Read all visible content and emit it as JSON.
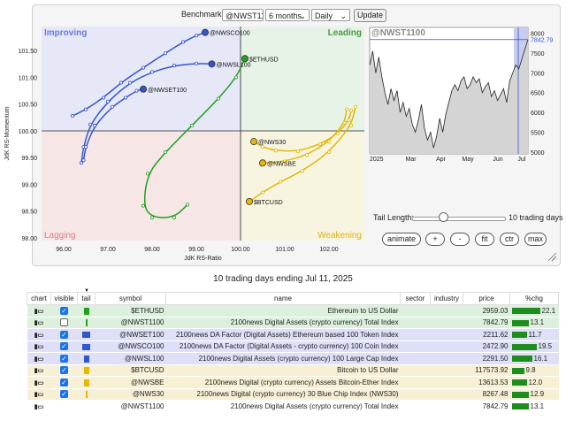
{
  "controls": {
    "benchmark_label": "Benchmark:",
    "benchmark_value": "@NWST1100",
    "period_value": "6 months",
    "interval_value": "Daily",
    "update_label": "Update"
  },
  "rrg": {
    "quadrants": {
      "improving": "Improving",
      "leading": "Leading",
      "lagging": "Lagging",
      "weakening": "Weakening"
    },
    "quadrant_colors": {
      "improving": "#e6e8f7",
      "leading": "#e6f3e6",
      "lagging": "#f7e6e6",
      "weakening": "#f7f4e0"
    },
    "quadrant_text_colors": {
      "improving": "#6b78d8",
      "leading": "#4a9a4a",
      "lagging": "#d88080",
      "weakening": "#e0b020"
    },
    "xlabel": "JdK RS-Ratio",
    "ylabel": "JdK RS-Momentum",
    "x_ticks": [
      "96.00",
      "97.00",
      "98.00",
      "99.00",
      "100.00",
      "101.00",
      "102.00"
    ],
    "y_ticks": [
      "101.50",
      "101.00",
      "100.50",
      "100.00",
      "99.50",
      "99.00",
      "98.50",
      "98.00"
    ],
    "xlim": [
      95.5,
      102.8
    ],
    "ylim": [
      97.95,
      101.95
    ],
    "series": [
      {
        "name": "@NWSCO100",
        "color": "#3355cc",
        "points": [
          [
            96.2,
            100.28
          ],
          [
            96.5,
            100.4
          ],
          [
            96.9,
            100.62
          ],
          [
            97.3,
            100.9
          ],
          [
            97.8,
            101.18
          ],
          [
            98.3,
            101.45
          ],
          [
            98.7,
            101.66
          ],
          [
            99.0,
            101.78
          ],
          [
            99.2,
            101.84
          ]
        ]
      },
      {
        "name": "@NWSL100",
        "color": "#3355cc",
        "points": [
          [
            96.4,
            99.4
          ],
          [
            96.45,
            99.7
          ],
          [
            96.6,
            100.12
          ],
          [
            97.0,
            100.55
          ],
          [
            97.5,
            100.9
          ],
          [
            98.0,
            101.1
          ],
          [
            98.5,
            101.22
          ],
          [
            99.0,
            101.26
          ],
          [
            99.35,
            101.25
          ]
        ]
      },
      {
        "name": "@NWSET100",
        "color": "#3355cc",
        "points": [
          [
            96.45,
            99.45
          ],
          [
            96.5,
            99.7
          ],
          [
            96.7,
            100.1
          ],
          [
            97.1,
            100.45
          ],
          [
            97.4,
            100.62
          ],
          [
            97.65,
            100.75
          ],
          [
            97.8,
            100.78
          ]
        ]
      },
      {
        "name": "$ETHUSD",
        "color": "#22a022",
        "points": [
          [
            98.8,
            98.62
          ],
          [
            98.5,
            98.38
          ],
          [
            98.0,
            98.38
          ],
          [
            97.8,
            98.6
          ],
          [
            97.9,
            99.2
          ],
          [
            98.3,
            99.6
          ],
          [
            98.9,
            100.1
          ],
          [
            99.5,
            100.6
          ],
          [
            99.9,
            101.0
          ],
          [
            100.1,
            101.35
          ]
        ]
      },
      {
        "name": "@NWS30",
        "color": "#e6b800",
        "points": [
          [
            102.5,
            100.38
          ],
          [
            102.45,
            100.2
          ],
          [
            102.2,
            99.95
          ],
          [
            101.8,
            99.75
          ],
          [
            101.3,
            99.62
          ],
          [
            100.8,
            99.63
          ],
          [
            100.5,
            99.7
          ],
          [
            100.3,
            99.8
          ]
        ]
      },
      {
        "name": "@NWSBE",
        "color": "#e6b800",
        "points": [
          [
            102.4,
            100.4
          ],
          [
            102.35,
            100.15
          ],
          [
            102.0,
            99.8
          ],
          [
            101.5,
            99.55
          ],
          [
            101.0,
            99.43
          ],
          [
            100.5,
            99.4
          ]
        ]
      },
      {
        "name": "$BTCUSD",
        "color": "#e6b800",
        "points": [
          [
            102.6,
            100.45
          ],
          [
            102.5,
            100.1
          ],
          [
            102.0,
            99.6
          ],
          [
            101.4,
            99.25
          ],
          [
            100.9,
            99.05
          ],
          [
            100.5,
            98.85
          ],
          [
            100.2,
            98.68
          ]
        ]
      }
    ],
    "labels": [
      "@NWSCO100",
      "@NWSL100",
      "@NWSET100",
      "$ETHUSD",
      "@NWS30",
      "@NWSBE",
      "$BTCUSD"
    ]
  },
  "price_chart": {
    "title": "@NWST1100",
    "current_value": "7842.79",
    "y_ticks": [
      "8000",
      "7500",
      "7000",
      "6500",
      "6000",
      "5500",
      "5000"
    ],
    "x_ticks": [
      "2025",
      "Mar",
      "Apr",
      "May",
      "Jun",
      "Jul"
    ],
    "ylim": [
      4950,
      8150
    ],
    "values": [
      7200,
      7550,
      7000,
      7400,
      6900,
      6500,
      6200,
      6600,
      6300,
      6550,
      6000,
      6250,
      5900,
      6100,
      5700,
      5500,
      5800,
      6200,
      5600,
      5300,
      5500,
      5100,
      5400,
      5850,
      5500,
      5950,
      6250,
      6550,
      6700,
      6550,
      6800,
      6900,
      6600,
      6700,
      6900,
      6750,
      6850,
      6500,
      6650,
      6750,
      6400,
      6550,
      6300,
      6450,
      6600,
      6250,
      6800,
      7000,
      7200,
      7100,
      7350,
      7600,
      7842
    ]
  },
  "tail_slider": {
    "label": "Tail Length:",
    "value_label": "10 trading days",
    "value": 10,
    "max": 30
  },
  "buttons": {
    "animate": "animate",
    "plus": "+",
    "minus": "-",
    "fit": "fit",
    "ctr": "ctr",
    "max": "max"
  },
  "caption": "10 trading days ending Jul 11, 2025",
  "table": {
    "headers": [
      "chart",
      "visible",
      "tail",
      "symbol",
      "name",
      "sector",
      "industry",
      "price",
      "%chg"
    ],
    "rows": [
      {
        "symbol": "$ETHUSD",
        "name": "Ethereum to US Dollar",
        "sector": "",
        "industry": "",
        "price": "2959.03",
        "chg": "22.1",
        "chg_value": 22.1,
        "visible": true,
        "tail_color": "#22a022",
        "tail_kind": "box",
        "bg": "#ddf0dd"
      },
      {
        "symbol": "@NWST1100",
        "name": "2100news Digital Assets (crypto currency) Total Index",
        "sector": "",
        "industry": "",
        "price": "7842.79",
        "chg": "13.1",
        "chg_value": 13.1,
        "visible": false,
        "tail_color": "#22a022",
        "tail_kind": "line",
        "bg": "#ddf0dd"
      },
      {
        "symbol": "@NWSET100",
        "name": "2100news DA Factor (Digital Assets) Ethereum based 100 Token Index",
        "sector": "",
        "industry": "",
        "price": "2211.62",
        "chg": "11.7",
        "chg_value": 11.7,
        "visible": true,
        "tail_color": "#3355cc",
        "tail_kind": "wide",
        "bg": "#dde0f7"
      },
      {
        "symbol": "@NWSCO100",
        "name": "2100news DA Factor (Digital Assets - crypto currency) 100 Coin Index",
        "sector": "",
        "industry": "",
        "price": "2472.90",
        "chg": "19.5",
        "chg_value": 19.5,
        "visible": true,
        "tail_color": "#3355cc",
        "tail_kind": "wide",
        "bg": "#dde0f7"
      },
      {
        "symbol": "@NWSL100",
        "name": "2100news Digital Assets (crypto currency) 100 Large Cap Index",
        "sector": "",
        "industry": "",
        "price": "2291.50",
        "chg": "16.1",
        "chg_value": 16.1,
        "visible": true,
        "tail_color": "#3355cc",
        "tail_kind": "box",
        "bg": "#dde0f7"
      },
      {
        "symbol": "$BTCUSD",
        "name": "Bitcoin to US Dollar",
        "sector": "",
        "industry": "",
        "price": "117573.92",
        "chg": "9.8",
        "chg_value": 9.8,
        "visible": true,
        "tail_color": "#e6b800",
        "tail_kind": "box",
        "bg": "#f7f0d4"
      },
      {
        "symbol": "@NWSBE",
        "name": "2100news Digital (crypto currency) Assets Bitcoin-Ether Index",
        "sector": "",
        "industry": "",
        "price": "13613.53",
        "chg": "12.0",
        "chg_value": 12.0,
        "visible": true,
        "tail_color": "#e6b800",
        "tail_kind": "box",
        "bg": "#f7f0d4"
      },
      {
        "symbol": "@NWS30",
        "name": "2100news Digital (crypto currency) 30 Blue Chip Index (NWS30)",
        "sector": "",
        "industry": "",
        "price": "8267.48",
        "chg": "12.9",
        "chg_value": 12.9,
        "visible": true,
        "tail_color": "#e6b800",
        "tail_kind": "line",
        "bg": "#f7f0d4"
      },
      {
        "symbol": "@NWST1100",
        "name": "2100news Digital Assets (crypto currency) Total Index",
        "sector": "",
        "industry": "",
        "price": "7842.79",
        "chg": "13.1",
        "chg_value": 13.1,
        "visible": null,
        "tail_color": "",
        "tail_kind": "none",
        "bg": "#ffffff"
      }
    ]
  },
  "icons": {
    "chart": "chart-link-icon",
    "sort": "sort-indicator-icon",
    "resize": "resize-grip-icon",
    "dropdown": "chevron-down-icon"
  }
}
